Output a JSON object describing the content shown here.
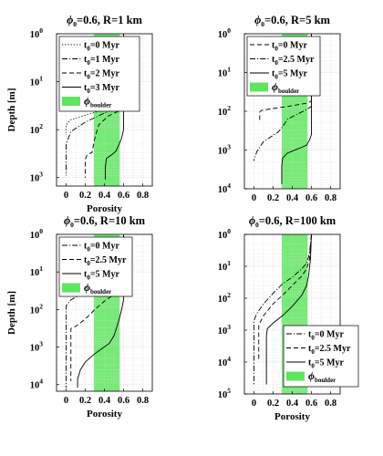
{
  "chart_data": [
    {
      "type": "line",
      "title_prefix": "ϕ",
      "title_subscript": "0",
      "title_suffix": "=0.6, R=1 km",
      "xlabel": "Porosity",
      "ylabel": "Depth [m]",
      "xlim": [
        -0.1,
        0.9
      ],
      "x_ticks": [
        "0",
        "0.2",
        "0.4",
        "0.6",
        "0.8"
      ],
      "y_scale": "log",
      "y_reversed": true,
      "ylim": [
        1,
        1500
      ],
      "y_tick_exponents": [
        "0",
        "1",
        "2",
        "3"
      ],
      "grid": true,
      "boulder_band": {
        "x_from": 0.29,
        "x_to": 0.56,
        "color": "#5ee65e"
      },
      "legend": {
        "position": "top-left",
        "boulder_label": "ϕ",
        "boulder_label_sub": "boulder"
      },
      "series": [
        {
          "name_prefix": "t",
          "name_sub": "0",
          "name_suffix": "=0 Myr",
          "dash": "dotted",
          "points": [
            [
              0.6,
              1
            ],
            [
              0.6,
              25
            ],
            [
              0.56,
              28
            ],
            [
              0.4,
              38
            ],
            [
              0.2,
              50
            ],
            [
              0.05,
              62
            ],
            [
              0.0,
              80
            ],
            [
              0.0,
              130
            ]
          ]
        },
        {
          "name_prefix": "t",
          "name_sub": "0",
          "name_suffix": "=1 Myr",
          "dash": "dashdot",
          "points": [
            [
              0.6,
              1
            ],
            [
              0.6,
              28
            ],
            [
              0.56,
              33
            ],
            [
              0.4,
              45
            ],
            [
              0.2,
              70
            ],
            [
              0.05,
              110
            ],
            [
              0.0,
              200
            ],
            [
              0.0,
              900
            ]
          ]
        },
        {
          "name_prefix": "t",
          "name_sub": "0",
          "name_suffix": "=2 Myr",
          "dash": "dashed",
          "points": [
            [
              0.6,
              1
            ],
            [
              0.6,
              35
            ],
            [
              0.56,
              40
            ],
            [
              0.44,
              52
            ],
            [
              0.34,
              80
            ],
            [
              0.3,
              150
            ],
            [
              0.27,
              300
            ],
            [
              0.22,
              330
            ],
            [
              0.2,
              420
            ],
            [
              0.2,
              1000
            ]
          ]
        },
        {
          "name_prefix": "t",
          "name_sub": "0",
          "name_suffix": "=3 Myr",
          "dash": "solid",
          "points": [
            [
              0.6,
              1
            ],
            [
              0.6,
              100
            ],
            [
              0.58,
              150
            ],
            [
              0.55,
              210
            ],
            [
              0.52,
              280
            ],
            [
              0.48,
              330
            ],
            [
              0.42,
              400
            ],
            [
              0.41,
              600
            ],
            [
              0.41,
              1100
            ]
          ]
        }
      ]
    },
    {
      "type": "line",
      "title_prefix": "ϕ",
      "title_subscript": "0",
      "title_suffix": "=0.6, R=5 km",
      "xlabel": "",
      "ylabel": "",
      "xlim": [
        -0.1,
        0.9
      ],
      "x_ticks": [
        "0",
        "0.2",
        "0.4",
        "0.6",
        "0.8"
      ],
      "y_scale": "log",
      "y_reversed": true,
      "ylim": [
        1,
        10000
      ],
      "y_tick_exponents": [
        "0",
        "1",
        "2",
        "3",
        "4"
      ],
      "grid": true,
      "boulder_band": {
        "x_from": 0.29,
        "x_to": 0.56,
        "color": "#5ee65e"
      },
      "legend": {
        "position": "top-left",
        "boulder_label": "ϕ",
        "boulder_label_sub": "boulder"
      },
      "series": [
        {
          "name_prefix": "t",
          "name_sub": "0",
          "name_suffix": "=0 Myr",
          "dash": "dashed",
          "points": [
            [
              0.6,
              1
            ],
            [
              0.6,
              55
            ],
            [
              0.55,
              62
            ],
            [
              0.4,
              72
            ],
            [
              0.2,
              85
            ],
            [
              0.08,
              95
            ],
            [
              0.06,
              105
            ],
            [
              0.06,
              180
            ]
          ]
        },
        {
          "name_prefix": "t",
          "name_sub": "0",
          "name_suffix": "=2.5 Myr",
          "dash": "dashdot",
          "points": [
            [
              0.6,
              1
            ],
            [
              0.6,
              75
            ],
            [
              0.55,
              90
            ],
            [
              0.45,
              120
            ],
            [
              0.35,
              160
            ],
            [
              0.3,
              250
            ],
            [
              0.25,
              350
            ],
            [
              0.1,
              600
            ],
            [
              0.03,
              1100
            ],
            [
              0.0,
              1800
            ],
            [
              0.0,
              1900
            ]
          ]
        },
        {
          "name_prefix": "t",
          "name_sub": "0",
          "name_suffix": "=5 Myr",
          "dash": "solid",
          "points": [
            [
              0.6,
              1
            ],
            [
              0.6,
              400
            ],
            [
              0.58,
              550
            ],
            [
              0.55,
              750
            ],
            [
              0.5,
              850
            ],
            [
              0.45,
              950
            ],
            [
              0.35,
              1200
            ],
            [
              0.3,
              1600
            ],
            [
              0.29,
              2500
            ],
            [
              0.29,
              7500
            ]
          ]
        }
      ]
    },
    {
      "type": "line",
      "title_prefix": "ϕ",
      "title_subscript": "0",
      "title_suffix": "=0.6, R=10 km",
      "xlabel": "Porosity",
      "ylabel": "Depth [m]",
      "xlim": [
        -0.1,
        0.9
      ],
      "x_ticks": [
        "0",
        "0.2",
        "0.4",
        "0.6",
        "0.8"
      ],
      "y_scale": "log",
      "y_reversed": true,
      "ylim": [
        1,
        15000
      ],
      "y_tick_exponents": [
        "0",
        "1",
        "2",
        "3",
        "4"
      ],
      "grid": true,
      "boulder_band": {
        "x_from": 0.29,
        "x_to": 0.56,
        "color": "#5ee65e"
      },
      "legend": {
        "position": "top-left",
        "boulder_label": "ϕ",
        "boulder_label_sub": "boulder"
      },
      "series": [
        {
          "name_prefix": "t",
          "name_sub": "0",
          "name_suffix": "=0 Myr",
          "dash": "dashdot",
          "points": [
            [
              0.6,
              1
            ],
            [
              0.6,
              7
            ],
            [
              0.56,
              12
            ],
            [
              0.4,
              20
            ],
            [
              0.2,
              35
            ],
            [
              0.05,
              55
            ],
            [
              0.0,
              80
            ],
            [
              0.0,
              12000
            ]
          ]
        },
        {
          "name_prefix": "t",
          "name_sub": "0",
          "name_suffix": "=2.5 Myr",
          "dash": "dashed",
          "points": [
            [
              0.6,
              1
            ],
            [
              0.6,
              10
            ],
            [
              0.56,
              25
            ],
            [
              0.5,
              40
            ],
            [
              0.4,
              60
            ],
            [
              0.3,
              100
            ],
            [
              0.2,
              180
            ],
            [
              0.1,
              280
            ],
            [
              0.05,
              320
            ],
            [
              0.05,
              8000
            ]
          ]
        },
        {
          "name_prefix": "t",
          "name_sub": "0",
          "name_suffix": "=5 Myr",
          "dash": "solid",
          "points": [
            [
              0.6,
              1
            ],
            [
              0.6,
              55
            ],
            [
              0.58,
              100
            ],
            [
              0.55,
              200
            ],
            [
              0.5,
              500
            ],
            [
              0.45,
              800
            ],
            [
              0.3,
              1500
            ],
            [
              0.2,
              2500
            ],
            [
              0.15,
              4000
            ],
            [
              0.12,
              7000
            ],
            [
              0.12,
              12000
            ]
          ]
        }
      ]
    },
    {
      "type": "line",
      "title_prefix": "ϕ",
      "title_subscript": "0",
      "title_suffix": "=0.6, R=100 km",
      "xlabel": "Porosity",
      "ylabel": "",
      "xlim": [
        -0.1,
        0.9
      ],
      "x_ticks": [
        "0",
        "0.2",
        "0.4",
        "0.6",
        "0.8"
      ],
      "y_scale": "log",
      "y_reversed": true,
      "ylim": [
        1,
        100000
      ],
      "y_tick_exponents": [
        "0",
        "1",
        "2",
        "3",
        "4",
        "5"
      ],
      "grid": true,
      "boulder_band": {
        "x_from": 0.29,
        "x_to": 0.56,
        "color": "#5ee65e"
      },
      "legend": {
        "position": "bottom-right",
        "boulder_label": "ϕ",
        "boulder_label_sub": "boulder"
      },
      "series": [
        {
          "name_prefix": "t",
          "name_sub": "0",
          "name_suffix": "=0 Myr",
          "dash": "dashdot",
          "points": [
            [
              0.6,
              1
            ],
            [
              0.58,
              4
            ],
            [
              0.55,
              8
            ],
            [
              0.5,
              12
            ],
            [
              0.4,
              22
            ],
            [
              0.3,
              35
            ],
            [
              0.2,
              70
            ],
            [
              0.1,
              150
            ],
            [
              0.03,
              300
            ],
            [
              0.0,
              500
            ],
            [
              0.0,
              50000
            ]
          ]
        },
        {
          "name_prefix": "t",
          "name_sub": "0",
          "name_suffix": "=2.5 Myr",
          "dash": "dashed",
          "points": [
            [
              0.6,
              1
            ],
            [
              0.58,
              6
            ],
            [
              0.55,
              12
            ],
            [
              0.5,
              20
            ],
            [
              0.4,
              40
            ],
            [
              0.3,
              80
            ],
            [
              0.2,
              150
            ],
            [
              0.1,
              350
            ],
            [
              0.05,
              700
            ],
            [
              0.05,
              8000
            ]
          ]
        },
        {
          "name_prefix": "t",
          "name_sub": "0",
          "name_suffix": "=5 Myr",
          "dash": "solid",
          "points": [
            [
              0.6,
              1
            ],
            [
              0.59,
              6
            ],
            [
              0.57,
              20
            ],
            [
              0.55,
              40
            ],
            [
              0.5,
              80
            ],
            [
              0.4,
              180
            ],
            [
              0.3,
              350
            ],
            [
              0.2,
              600
            ],
            [
              0.14,
              900
            ],
            [
              0.13,
              1500
            ],
            [
              0.13,
              50000
            ]
          ]
        }
      ]
    }
  ]
}
